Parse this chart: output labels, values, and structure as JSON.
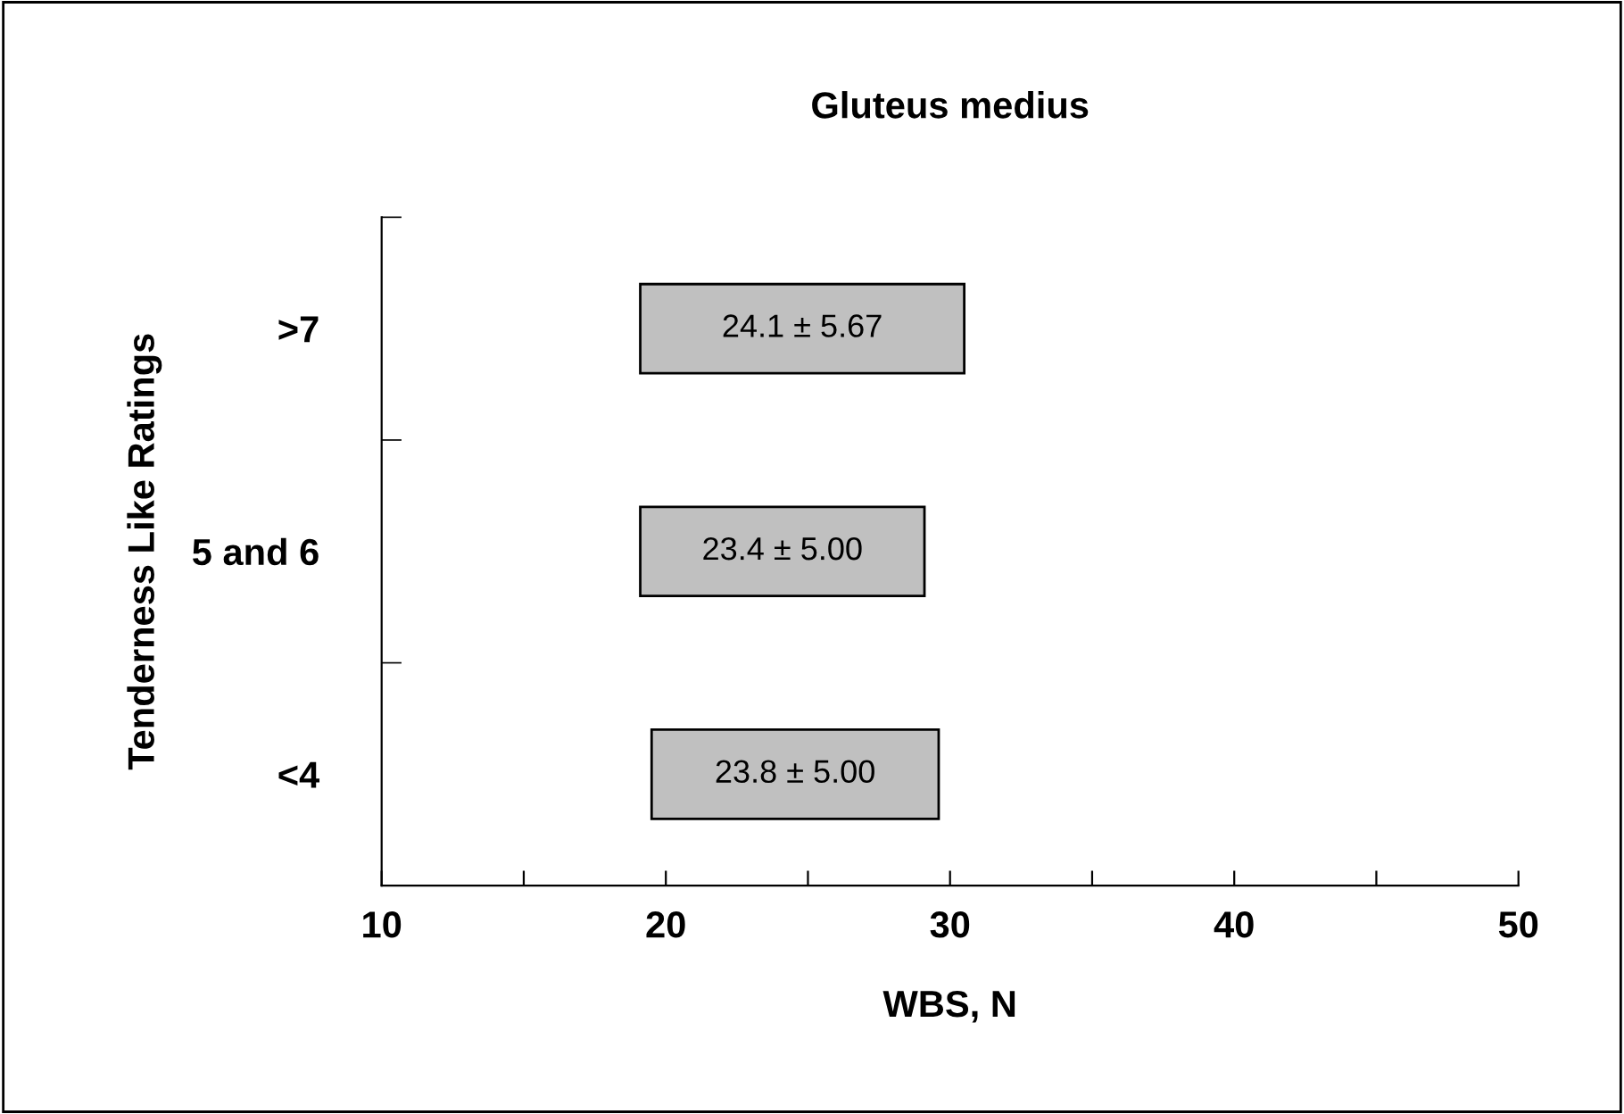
{
  "chart_data": {
    "type": "bar",
    "orientation": "horizontal",
    "title": "Gluteus medius",
    "xlabel": "WBS, N",
    "ylabel": "Tenderness Like Ratings",
    "categories": [
      ">7",
      "5 and 6",
      "<4"
    ],
    "base": [
      19.1,
      19.1,
      19.5
    ],
    "values": [
      11.4,
      10.0,
      10.1
    ],
    "annotations": [
      "24.1 ± 5.67",
      "23.4 ± 5.00",
      "23.8 ± 5.00"
    ],
    "color": "#c0c0c0",
    "xlim": [
      10,
      50
    ],
    "xticks": [
      10,
      {
        "value": 15,
        "label": null
      },
      20,
      {
        "value": 25,
        "label": null
      },
      30,
      {
        "value": 35,
        "label": null
      },
      40,
      {
        "value": 45,
        "label": null
      },
      50
    ],
    "grid": false,
    "legend": false
  }
}
